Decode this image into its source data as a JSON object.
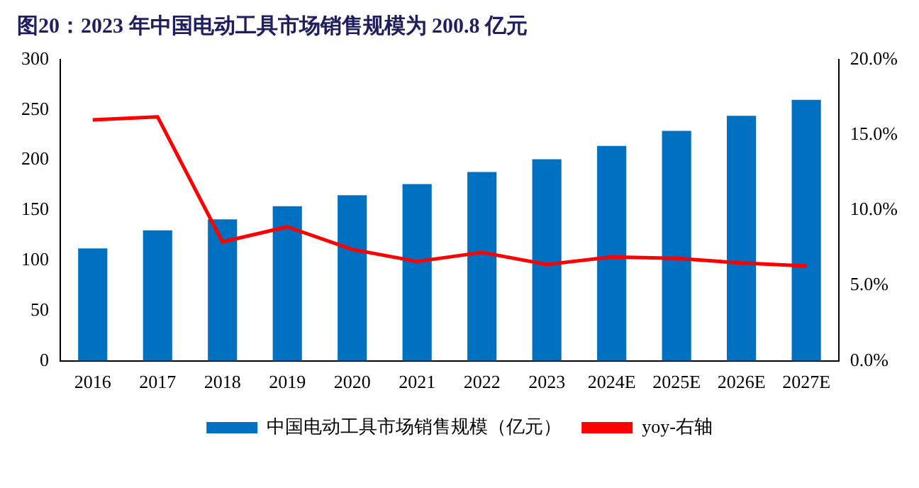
{
  "chart_data": {
    "type": "bar",
    "title": "图20：2023 年中国电动工具市场销售规模为 200.8 亿元",
    "categories": [
      "2016",
      "2017",
      "2018",
      "2019",
      "2020",
      "2021",
      "2022",
      "2023",
      "2024E",
      "2025E",
      "2026E",
      "2027E"
    ],
    "series": [
      {
        "name": "中国电动工具市场销售规模（亿元）",
        "color": "#0070c0",
        "values": [
          112,
          130,
          141,
          154,
          165,
          176,
          188,
          200.8,
          214,
          229,
          244,
          260
        ]
      },
      {
        "name": "yoy-右轴",
        "type": "line",
        "axis": "y2",
        "color": "#ff0000",
        "values": [
          16.0,
          16.2,
          7.9,
          8.9,
          7.4,
          6.6,
          7.2,
          6.4,
          6.9,
          6.8,
          6.5,
          6.3
        ]
      }
    ],
    "ylim": [
      0,
      300
    ],
    "yticks": [
      0,
      50,
      100,
      150,
      200,
      250,
      300
    ],
    "y2lim": [
      0,
      20
    ],
    "y2ticks": [
      {
        "value": 0,
        "label": "0.0%"
      },
      {
        "value": 5,
        "label": "5.0%"
      },
      {
        "value": 10,
        "label": "10.0%"
      },
      {
        "value": 15,
        "label": "15.0%"
      },
      {
        "value": 20,
        "label": "20.0%"
      }
    ],
    "legend": "bottom",
    "grid": false,
    "marker": "none"
  }
}
